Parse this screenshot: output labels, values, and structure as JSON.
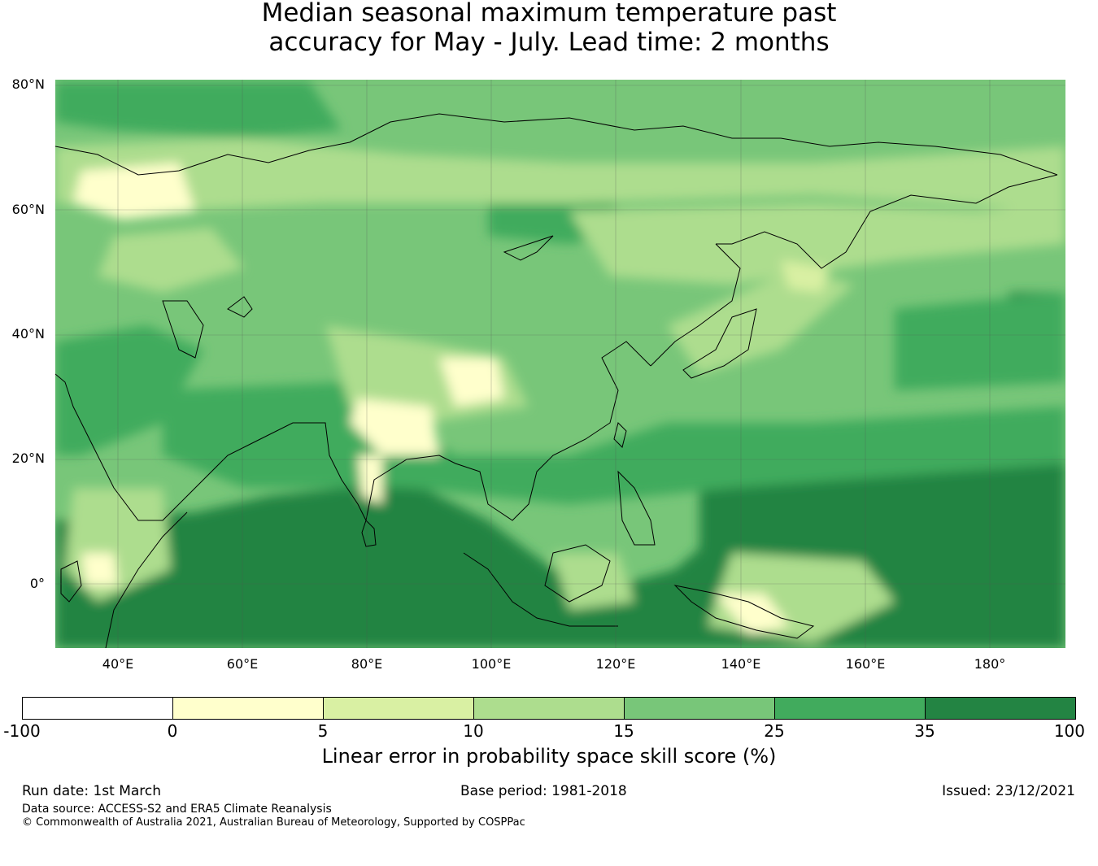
{
  "title": {
    "line1": "Median seasonal maximum temperature past",
    "line2": "accuracy for May - July. Lead time: 2 months"
  },
  "map": {
    "region": "Asia and western Pacific",
    "lat_ticks": [
      "80°N",
      "60°N",
      "40°N",
      "20°N",
      "0°"
    ],
    "lon_ticks": [
      "40°E",
      "60°E",
      "80°E",
      "100°E",
      "120°E",
      "140°E",
      "160°E",
      "180°"
    ],
    "gridlines": true
  },
  "colorbar": {
    "title": "Linear error in probability space skill score (%)",
    "boundaries": [
      "-100",
      "0",
      "5",
      "10",
      "15",
      "25",
      "35",
      "100"
    ],
    "colors": [
      "#ffffff",
      "#ffffcc",
      "#d9f0a3",
      "#addd8e",
      "#78c679",
      "#41ab5d",
      "#238443"
    ]
  },
  "footer": {
    "run_date": "Run date: 1st March",
    "base_period": "Base period: 1981-2018",
    "issued": "Issued: 23/12/2021",
    "data_source": "Data source: ACCESS-S2 and ERA5 Climate Reanalysis",
    "copyright": "© Commonwealth of Australia 2021, Australian Bureau of Meteorology, Supported by COSPPac"
  }
}
